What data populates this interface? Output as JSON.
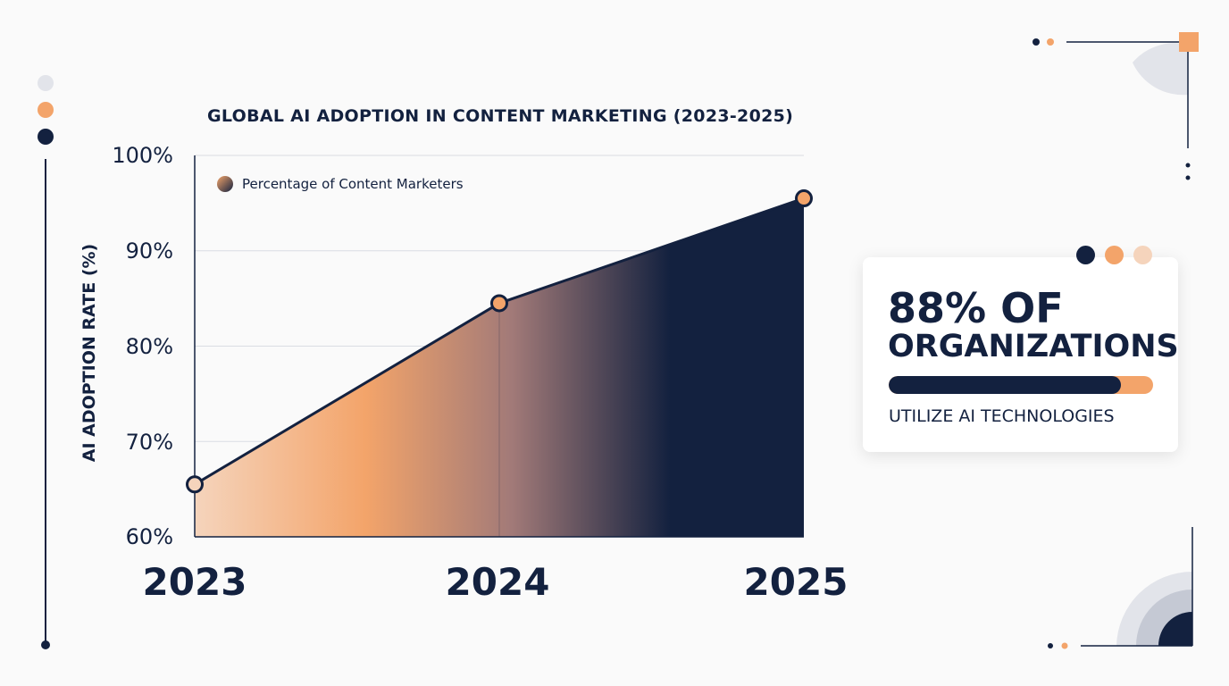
{
  "colors": {
    "navy": "#13213f",
    "orange": "#f3a46a",
    "light_orange": "#f5d4bc",
    "gray": "#e2e4ea"
  },
  "chart_data": {
    "type": "area",
    "title": "GLOBAL AI ADOPTION IN CONTENT MARKETING (2023-2025)",
    "ylabel": "AI ADOPTION RATE (%)",
    "xlabel": "",
    "categories": [
      "2023",
      "2024",
      "2025"
    ],
    "series": [
      {
        "name": "Percentage of Content Marketers",
        "values": [
          65.5,
          84.5,
          95.5
        ]
      }
    ],
    "yticks": [
      "60%",
      "70%",
      "80%",
      "90%",
      "100%"
    ],
    "ylim": [
      60,
      100
    ],
    "grid": true,
    "legend": "top-left"
  },
  "stat": {
    "line1": "88% OF",
    "line2": "ORGANIZATIONS",
    "caption": "UTILIZE AI TECHNOLOGIES",
    "fraction": 0.88
  }
}
